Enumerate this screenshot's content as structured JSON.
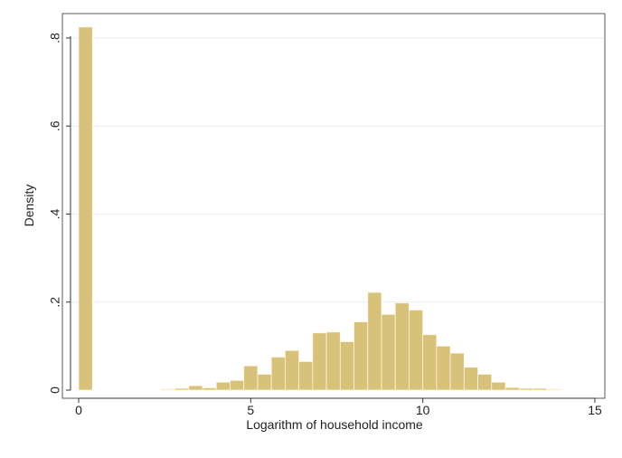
{
  "chart_data": {
    "type": "bar",
    "title": "",
    "xlabel": "Logarithm of household income",
    "ylabel": "Density",
    "xlim": [
      0,
      15
    ],
    "ylim": [
      0,
      0.8
    ],
    "x_ticks": [
      0,
      5,
      10,
      15
    ],
    "x_tick_labels": [
      "0",
      "5",
      "10",
      "15"
    ],
    "y_ticks": [
      0,
      0.2,
      0.4,
      0.6,
      0.8
    ],
    "y_tick_labels": [
      "0",
      ".2",
      ".4",
      ".6",
      ".8"
    ],
    "grid": true,
    "bin_width": 0.4,
    "bar_color": "#d8c17a",
    "bar_edge_color": "#fff7dd",
    "series": [
      {
        "bins": [
          [
            0.0,
            0.825
          ],
          [
            2.4,
            0.002
          ],
          [
            2.8,
            0.004
          ],
          [
            3.2,
            0.01
          ],
          [
            3.6,
            0.005
          ],
          [
            4.0,
            0.018
          ],
          [
            4.4,
            0.022
          ],
          [
            4.8,
            0.055
          ],
          [
            5.2,
            0.036
          ],
          [
            5.6,
            0.075
          ],
          [
            6.0,
            0.09
          ],
          [
            6.4,
            0.065
          ],
          [
            6.8,
            0.13
          ],
          [
            7.2,
            0.132
          ],
          [
            7.6,
            0.11
          ],
          [
            8.0,
            0.155
          ],
          [
            8.4,
            0.222
          ],
          [
            8.8,
            0.172
          ],
          [
            9.2,
            0.198
          ],
          [
            9.6,
            0.182
          ],
          [
            10.0,
            0.126
          ],
          [
            10.4,
            0.1
          ],
          [
            10.8,
            0.084
          ],
          [
            11.2,
            0.052
          ],
          [
            11.6,
            0.036
          ],
          [
            12.0,
            0.018
          ],
          [
            12.4,
            0.006
          ],
          [
            12.8,
            0.004
          ],
          [
            13.2,
            0.004
          ],
          [
            13.6,
            0.002
          ]
        ]
      }
    ]
  }
}
